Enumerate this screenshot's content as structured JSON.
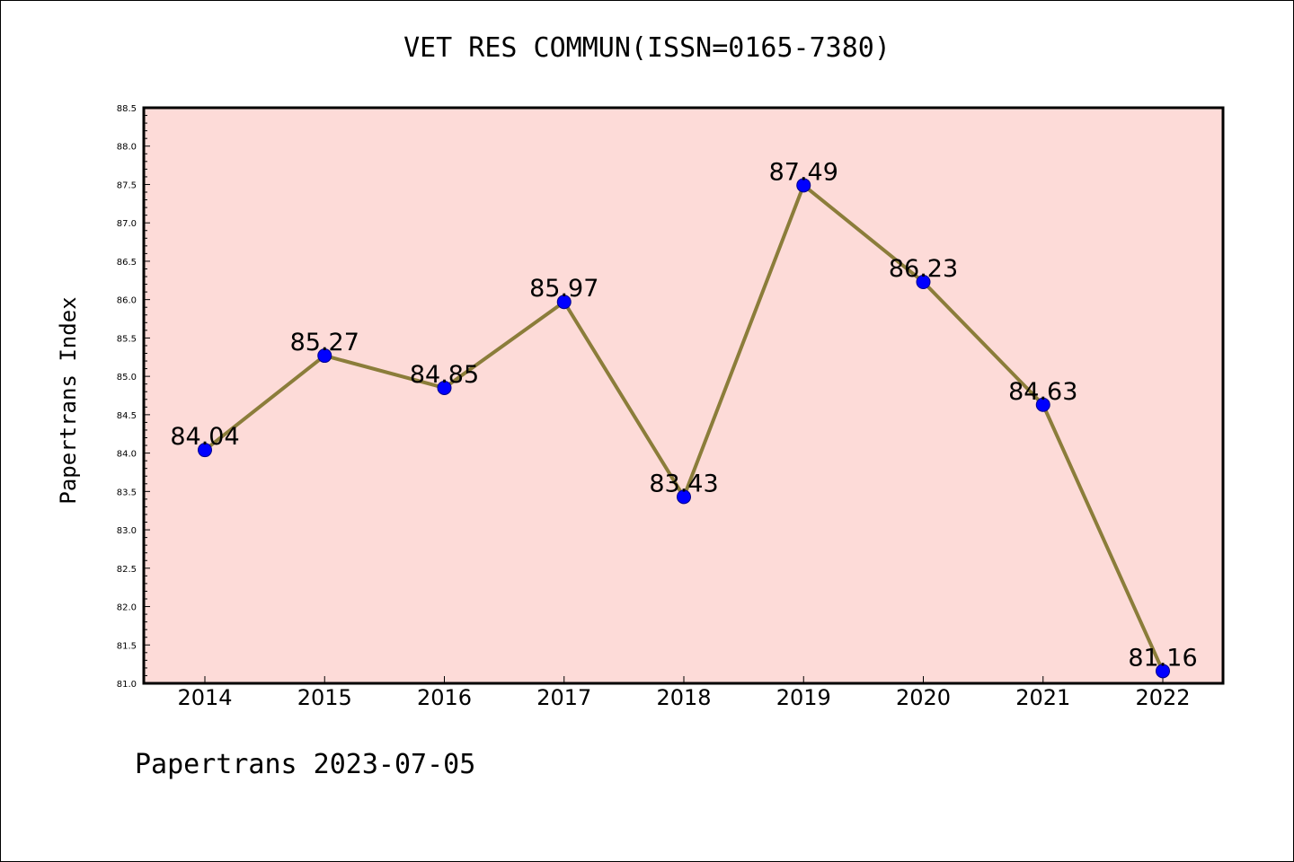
{
  "title": "VET RES COMMUN(ISSN=0165-7380)",
  "footer": "Papertrans 2023-07-05",
  "colors": {
    "plot_background": "#fddbd8",
    "line": "#8b7d3a",
    "marker": "#0000ff"
  },
  "chart_data": {
    "type": "line",
    "title": "VET RES COMMUN(ISSN=0165-7380)",
    "xlabel": "",
    "ylabel": "Papertrans Index",
    "x": [
      "2014",
      "2015",
      "2016",
      "2017",
      "2018",
      "2019",
      "2020",
      "2021",
      "2022"
    ],
    "series": [
      {
        "values": [
          84.04,
          85.27,
          84.85,
          85.97,
          83.43,
          87.49,
          86.23,
          84.63,
          81.16
        ],
        "labels": [
          "84.04",
          "85.27",
          "84.85",
          "85.97",
          "83.43",
          "87.49",
          "86.23",
          "84.63",
          "81.16"
        ]
      }
    ],
    "ylim": [
      81.0,
      88.5
    ],
    "yticks": [
      "81.0",
      "81.5",
      "82.0",
      "82.5",
      "83.0",
      "83.5",
      "84.0",
      "84.5",
      "85.0",
      "85.5",
      "86.0",
      "86.5",
      "87.0",
      "87.5",
      "88.0",
      "88.5"
    ],
    "grid": false,
    "legend": "none"
  }
}
